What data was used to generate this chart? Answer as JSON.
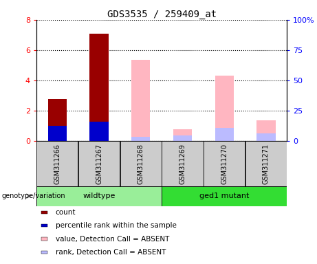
{
  "title": "GDS3535 / 259409_at",
  "samples": [
    "GSM311266",
    "GSM311267",
    "GSM311268",
    "GSM311269",
    "GSM311270",
    "GSM311271"
  ],
  "wildtype_label": "wildtype",
  "mutant_label": "ged1 mutant",
  "genotype_label": "genotype/variation",
  "red_bars": [
    2.8,
    7.1,
    0,
    0,
    0,
    0
  ],
  "blue_bars": [
    1.0,
    1.3,
    0,
    0,
    0,
    0
  ],
  "pink_bars": [
    0,
    0,
    5.35,
    0.8,
    4.3,
    1.4
  ],
  "lightblue_bars": [
    0,
    0,
    0.28,
    0.38,
    0.88,
    0.5
  ],
  "ylim_left": [
    0,
    8
  ],
  "ylim_right": [
    0,
    100
  ],
  "yticks_left": [
    0,
    2,
    4,
    6,
    8
  ],
  "yticks_right": [
    0,
    25,
    50,
    75,
    100
  ],
  "ytick_labels_right": [
    "0",
    "25",
    "50",
    "75",
    "100%"
  ],
  "bar_width": 0.45,
  "red_color": "#990000",
  "blue_color": "#0000CC",
  "pink_color": "#FFB6C1",
  "lightblue_color": "#BBBBFF",
  "box_color": "#CCCCCC",
  "bg_wildtype": "#99EE99",
  "bg_mutant": "#33DD33",
  "legend_items": [
    {
      "color": "#990000",
      "label": "count"
    },
    {
      "color": "#0000CC",
      "label": "percentile rank within the sample"
    },
    {
      "color": "#FFB6C1",
      "label": "value, Detection Call = ABSENT"
    },
    {
      "color": "#BBBBFF",
      "label": "rank, Detection Call = ABSENT"
    }
  ]
}
